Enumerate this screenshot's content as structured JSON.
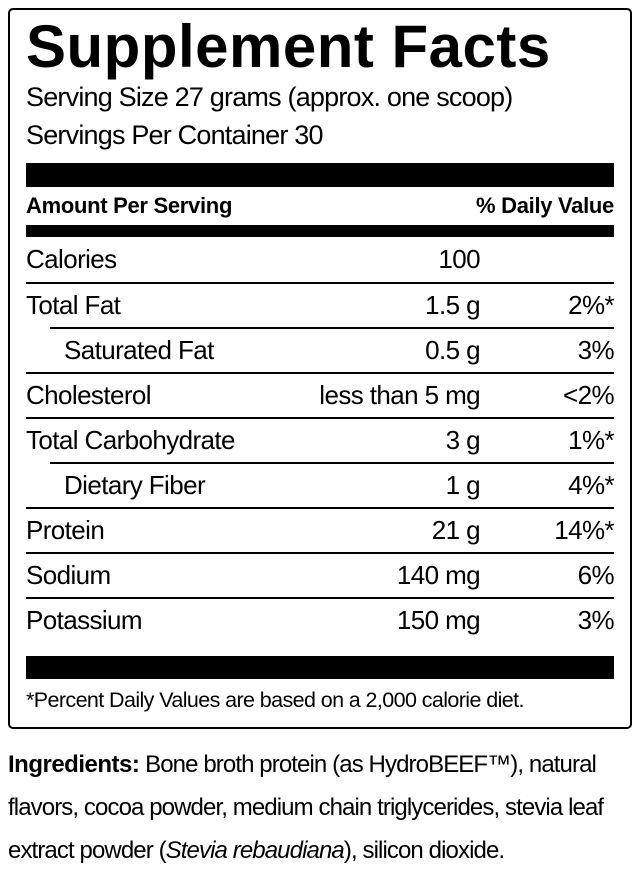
{
  "title": "Supplement Facts",
  "serving": {
    "size_line": "Serving Size 27 grams (approx. one scoop)",
    "per_container_line": "Servings Per Container 30"
  },
  "table": {
    "header": {
      "amount_label": "Amount Per Serving",
      "dv_label": "% Daily Value"
    },
    "rows": [
      {
        "name": "Calories",
        "amount": "100",
        "dv": "",
        "indent": false
      },
      {
        "name": "Total Fat",
        "amount": "1.5 g",
        "dv": "2%*",
        "indent": false
      },
      {
        "name": "Saturated Fat",
        "amount": "0.5 g",
        "dv": "3%",
        "indent": true
      },
      {
        "name": "Cholesterol",
        "amount": "less than 5 mg",
        "dv": "<2%",
        "indent": false
      },
      {
        "name": "Total Carbohydrate",
        "amount": "3 g",
        "dv": "1%*",
        "indent": false
      },
      {
        "name": "Dietary Fiber",
        "amount": "1 g",
        "dv": "4%*",
        "indent": true
      },
      {
        "name": "Protein",
        "amount": "21 g",
        "dv": "14%*",
        "indent": false
      },
      {
        "name": "Sodium",
        "amount": "140 mg",
        "dv": "6%",
        "indent": false
      },
      {
        "name": "Potassium",
        "amount": "150 mg",
        "dv": "3%",
        "indent": false
      }
    ],
    "footnote": "*Percent Daily Values are based on a 2,000 calorie diet."
  },
  "ingredients": {
    "label": "Ingredients:",
    "text_before_italic": " Bone broth protein (as HydroBEEF™), natural flavors, cocoa powder, medium chain triglycerides, stevia leaf extract powder (",
    "italic": "Stevia rebaudiana",
    "text_after_italic": "), silicon dioxide."
  },
  "colors": {
    "text": "#000000",
    "background": "#ffffff",
    "rule": "#000000"
  }
}
